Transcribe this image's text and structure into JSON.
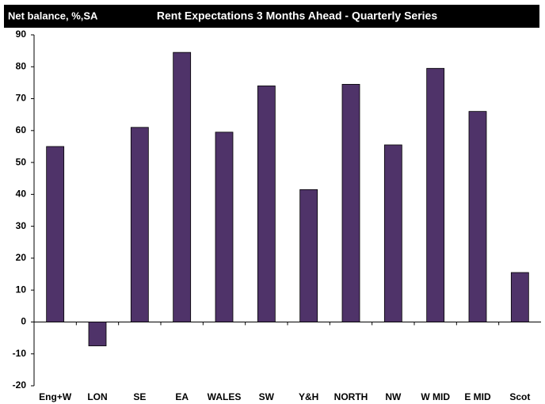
{
  "chart_data": {
    "type": "bar",
    "title": "Rent Expectations 3 Months Ahead - Quarterly Series",
    "y_label": "Net balance, %,SA",
    "categories": [
      "Eng+W",
      "LON",
      "SE",
      "EA",
      "WALES",
      "SW",
      "Y&H",
      "NORTH",
      "NW",
      "W MID",
      "E MID",
      "Scot"
    ],
    "values": [
      55,
      -7.5,
      61,
      84.5,
      59.5,
      74,
      41.5,
      74.5,
      55.5,
      79.5,
      66,
      15.5
    ],
    "color": "#4f3369",
    "ylim": [
      -20,
      90
    ],
    "yticks": [
      -20,
      -10,
      0,
      10,
      20,
      30,
      40,
      50,
      60,
      70,
      80,
      90
    ],
    "grid": false
  }
}
